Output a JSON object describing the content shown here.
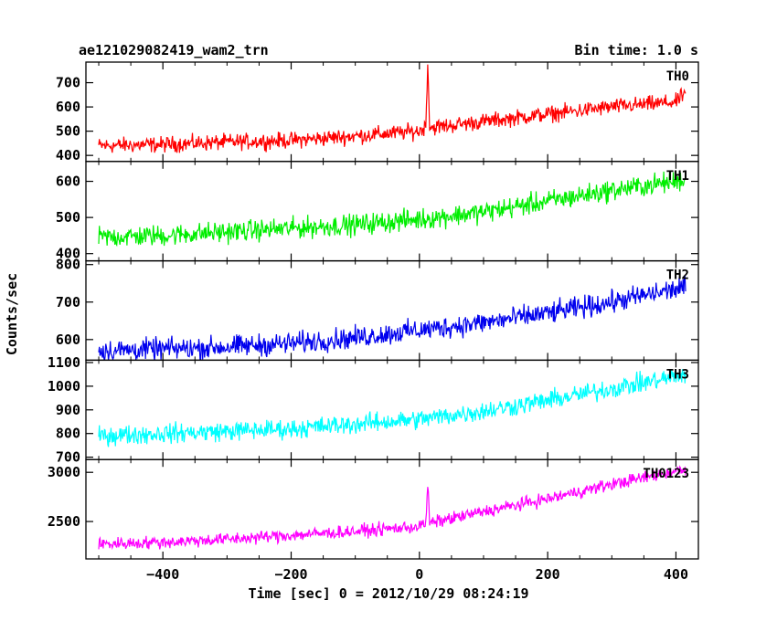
{
  "chart_data": {
    "type": "line",
    "title": "ae121029082419_wam2_trn",
    "subtitle": "Bin time: 1.0 s",
    "xlabel": "Time [sec] 0 = 2012/10/29 08:24:19",
    "ylabel": "Counts/sec",
    "xlim": [
      -520,
      435
    ],
    "x_ticks": [
      -400,
      -200,
      0,
      200,
      400
    ],
    "grid": false,
    "panels": [
      {
        "name": "TH0",
        "color": "#ff0000",
        "ylim": [
          375,
          785
        ],
        "y_ticks": [
          400,
          500,
          600,
          700
        ],
        "x": [
          -500,
          -400,
          -300,
          -200,
          -100,
          0,
          10,
          13,
          16,
          20,
          100,
          200,
          300,
          400,
          415
        ],
        "values": [
          440,
          445,
          455,
          462,
          480,
          500,
          520,
          790,
          520,
          515,
          540,
          570,
          600,
          620,
          660
        ],
        "noise": 28
      },
      {
        "name": "TH1",
        "color": "#00ee00",
        "ylim": [
          380,
          655
        ],
        "y_ticks": [
          400,
          500,
          600
        ],
        "x": [
          -500,
          -400,
          -300,
          -200,
          -100,
          0,
          100,
          200,
          300,
          400,
          415
        ],
        "values": [
          445,
          450,
          460,
          470,
          480,
          495,
          515,
          545,
          575,
          600,
          605
        ],
        "noise": 25
      },
      {
        "name": "TH2",
        "color": "#0000ee",
        "ylim": [
          545,
          810
        ],
        "y_ticks": [
          600,
          700,
          800
        ],
        "x": [
          -500,
          -400,
          -300,
          -200,
          -100,
          0,
          100,
          200,
          300,
          400,
          415
        ],
        "values": [
          570,
          575,
          580,
          590,
          605,
          625,
          645,
          670,
          700,
          735,
          740
        ],
        "noise": 25
      },
      {
        "name": "TH3",
        "color": "#00ffff",
        "ylim": [
          690,
          1110
        ],
        "y_ticks": [
          700,
          800,
          900,
          1000,
          1100
        ],
        "x": [
          -500,
          -400,
          -300,
          -200,
          -100,
          0,
          100,
          200,
          300,
          400,
          415
        ],
        "values": [
          790,
          800,
          810,
          820,
          840,
          860,
          895,
          940,
          990,
          1040,
          1050
        ],
        "noise": 35
      },
      {
        "name": "TH0123",
        "color": "#ff00ff",
        "ylim": [
          2120,
          3130
        ],
        "y_ticks": [
          2500,
          3000
        ],
        "x": [
          -500,
          -400,
          -300,
          -200,
          -100,
          0,
          10,
          13,
          16,
          20,
          100,
          200,
          300,
          400,
          415
        ],
        "values": [
          2270,
          2290,
          2320,
          2360,
          2400,
          2450,
          2480,
          2880,
          2480,
          2490,
          2600,
          2730,
          2880,
          3010,
          3030
        ],
        "noise": 55
      }
    ]
  }
}
